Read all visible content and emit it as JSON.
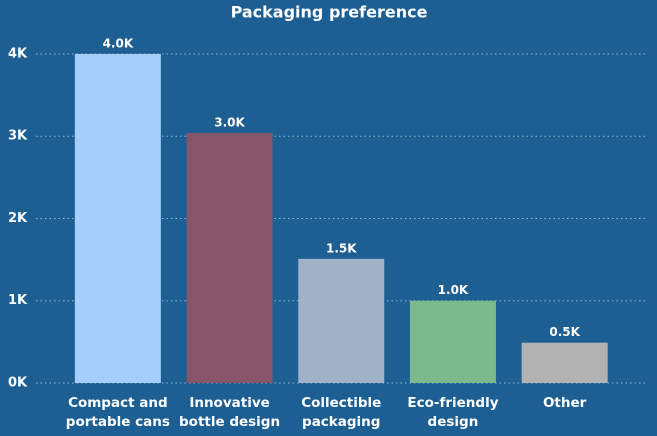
{
  "chart_data": {
    "type": "bar",
    "title": "Packaging preference",
    "categories": [
      "Compact and portable cans",
      "Innovative bottle design",
      "Collectible packaging",
      "Eco-friendly design",
      "Other"
    ],
    "values": [
      4000,
      3040,
      1510,
      1000,
      490
    ],
    "value_labels": [
      "4.0K",
      "3.0K",
      "1.5K",
      "1.0K",
      "0.5K"
    ],
    "colors": [
      "#a6cefd",
      "#85566a",
      "#a0b2c7",
      "#7bb98d",
      "#b2b2b2"
    ],
    "ylim": [
      0,
      4200
    ],
    "yticks": [
      {
        "value": 0,
        "label": "0K"
      },
      {
        "value": 1000,
        "label": "1K"
      },
      {
        "value": 2000,
        "label": "2K"
      },
      {
        "value": 3000,
        "label": "3K"
      },
      {
        "value": 4000,
        "label": "4K"
      }
    ],
    "grid": true
  }
}
